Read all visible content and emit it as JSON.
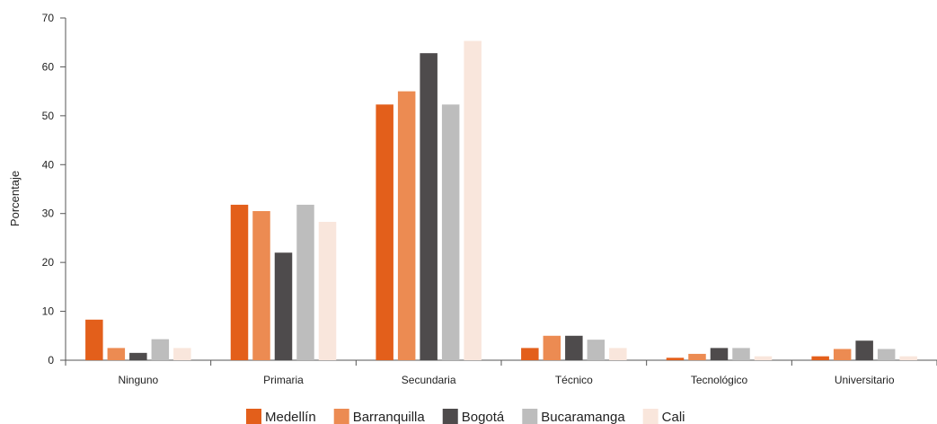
{
  "chart_data": {
    "type": "bar",
    "title": "",
    "xlabel": "",
    "ylabel": "Porcentaje",
    "ylim": [
      0,
      70
    ],
    "yticks": [
      0,
      10,
      20,
      30,
      40,
      50,
      60,
      70
    ],
    "grid": false,
    "legend_position": "bottom",
    "categories": [
      "Ninguno",
      "Primaria",
      "Secundaria",
      "Técnico",
      "Tecnológico",
      "Universitario"
    ],
    "series": [
      {
        "name": "Medellín",
        "color": "#E35F1B",
        "values": [
          8.3,
          31.8,
          52.3,
          2.5,
          0.5,
          0.8
        ]
      },
      {
        "name": "Barranquilla",
        "color": "#EC8B52",
        "values": [
          2.5,
          30.5,
          55.0,
          5.0,
          1.3,
          2.3
        ]
      },
      {
        "name": "Bogotá",
        "color": "#4E4B4C",
        "values": [
          1.5,
          22.0,
          62.8,
          5.0,
          2.5,
          4.0
        ]
      },
      {
        "name": "Bucaramanga",
        "color": "#BDBDBD",
        "values": [
          4.3,
          31.8,
          52.3,
          4.2,
          2.5,
          2.3
        ]
      },
      {
        "name": "Cali",
        "color": "#F9E6DC",
        "values": [
          2.5,
          28.3,
          65.3,
          2.5,
          0.8,
          0.8
        ]
      }
    ]
  }
}
